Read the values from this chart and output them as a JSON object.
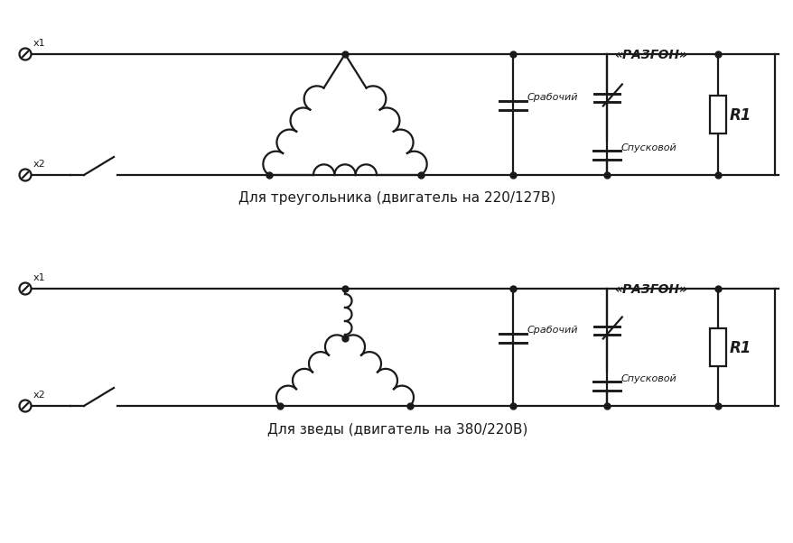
{
  "bg_color": "#ffffff",
  "line_color": "#1a1a1a",
  "lw": 1.6,
  "title1": "Для треугольника (двигатель на 220/127В)",
  "title2": "Для зведы (двигатель на 380/220В)",
  "label_razgon": "«РАЗГОН»",
  "label_srabochiy": "Срабочий",
  "label_spuskovoy": "Спусковой",
  "label_R1": "R1",
  "label_x1": "х1",
  "label_x2": "х2"
}
